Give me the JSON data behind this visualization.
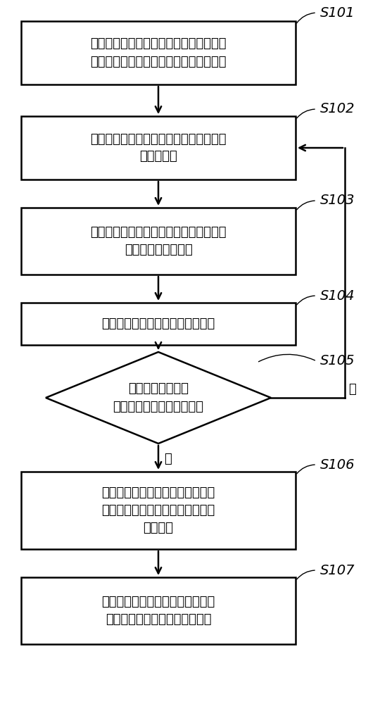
{
  "bg_color": "#ffffff",
  "box_edge_color": "#000000",
  "text_color": "#000000",
  "font_size": 13,
  "label_font_size": 14,
  "s101_text": "工控机通过总线状态选择线控制驱动器由\n模拟量信号有效状态切换至参数调节状态",
  "s102_text": "工控机通过辅助串行通讯总线向驱动器发\n送映射参数",
  "s103_text": "驱动器接收工控机发送的映射参数，并对\n该映射参数进行校验",
  "s104_text": "工控机接收驱动器返回的校验结果",
  "s105_text": "工控机根据接收的\n校验结果判断校验是否成功",
  "s106_text": "工控机根据映射参数调节模拟量信\n号，并根据预先设置的第二时间値\n进行延时",
  "s107_text": "工控机通过总线状态选择线控制驱\n动器切换回模拟量信号有效状态",
  "yes_text": "是",
  "no_text": "否",
  "labels": [
    "S101",
    "S102",
    "S103",
    "S104",
    "S105",
    "S106",
    "S107"
  ]
}
